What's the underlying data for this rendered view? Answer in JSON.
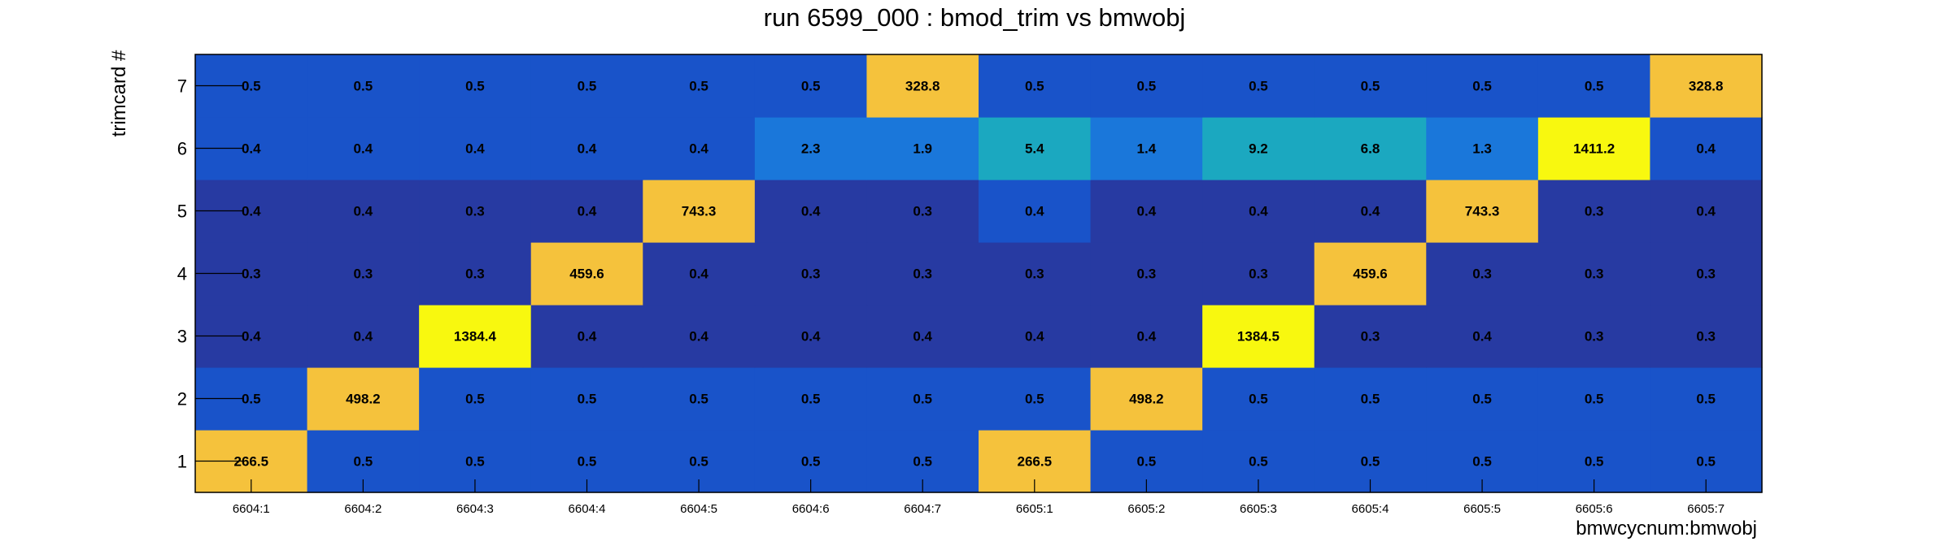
{
  "chart_data": {
    "type": "heatmap",
    "title": "run 6599_000 : bmod_trim vs bmwobj",
    "xlabel": "bmwcycnum:bmwobj",
    "ylabel": "trimcard #",
    "x_categories": [
      "6604:1",
      "6604:2",
      "6604:3",
      "6604:4",
      "6604:5",
      "6604:6",
      "6604:7",
      "6605:1",
      "6605:2",
      "6605:3",
      "6605:4",
      "6605:5",
      "6605:6",
      "6605:7"
    ],
    "y_categories": [
      "1",
      "2",
      "3",
      "4",
      "5",
      "6",
      "7"
    ],
    "values": [
      [
        266.5,
        0.5,
        0.5,
        0.5,
        0.5,
        0.5,
        0.5,
        266.5,
        0.5,
        0.5,
        0.5,
        0.5,
        0.5,
        0.5
      ],
      [
        0.5,
        498.2,
        0.5,
        0.5,
        0.5,
        0.5,
        0.5,
        0.5,
        498.2,
        0.5,
        0.5,
        0.5,
        0.5,
        0.5
      ],
      [
        0.4,
        0.4,
        1384.4,
        0.4,
        0.4,
        0.4,
        0.4,
        0.4,
        0.4,
        1384.5,
        0.3,
        0.4,
        0.3,
        0.3
      ],
      [
        0.3,
        0.3,
        0.3,
        459.6,
        0.4,
        0.3,
        0.3,
        0.3,
        0.3,
        0.3,
        459.6,
        0.3,
        0.3,
        0.3
      ],
      [
        0.4,
        0.4,
        0.3,
        0.4,
        743.3,
        0.4,
        0.3,
        0.4,
        0.4,
        0.4,
        0.4,
        743.3,
        0.3,
        0.4
      ],
      [
        0.4,
        0.4,
        0.4,
        0.4,
        0.4,
        2.3,
        1.9,
        5.4,
        1.4,
        9.2,
        6.8,
        1.3,
        1411.2,
        0.4
      ],
      [
        0.5,
        0.5,
        0.5,
        0.5,
        0.5,
        0.5,
        328.8,
        0.5,
        0.5,
        0.5,
        0.5,
        0.5,
        0.5,
        328.8
      ]
    ],
    "colors": {
      "low": "#273aa2",
      "mid_low": "#1953c9",
      "band": "#1a77da",
      "cyan": "#1ba8c0",
      "high": "#f5c23c",
      "max": "#f8f80f"
    }
  }
}
